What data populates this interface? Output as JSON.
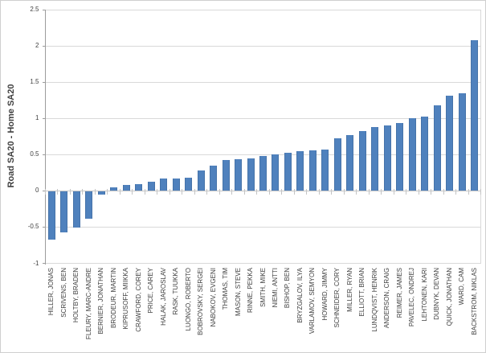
{
  "chart_data": {
    "type": "bar",
    "title": "",
    "xlabel": "",
    "ylabel": "Road SA20 - Home SA20",
    "ylim": [
      -1,
      2.5
    ],
    "ytick_step": 0.5,
    "ytick_labels": [
      "-1",
      "-0.5",
      "0",
      "0.5",
      "1",
      "1.5",
      "2",
      "2.5"
    ],
    "grid": true,
    "legend": false,
    "bar_color": "#4F81BD",
    "categories": [
      "HILLER, JONAS",
      "SCRIVENS, BEN",
      "HOLTBY, BRADEN",
      "FLEURY, MARC-ANDRE",
      "BERNIER, JONATHAN",
      "BRODEUR, MARTIN",
      "KIPRUSOFF, MIIKKA",
      "CRAWFORD, COREY",
      "PRICE, CAREY",
      "HALAK, JAROSLAV",
      "RASK, TUUKKA",
      "LUONGO, ROBERTO",
      "BOBROVSKY, SERGEI",
      "NABOKOV, EVGENI",
      "THOMAS, TIM",
      "MASON, STEVE",
      "RINNE, PEKKA",
      "SMITH, MIKE",
      "NIEMI, ANTTI",
      "BISHOP, BEN",
      "BRYZGALOV, ILYA",
      "VARLAMOV, SEMYON",
      "HOWARD, JIMMY",
      "SCHNEIDER, CORY",
      "MILLER, RYAN",
      "ELLIOTT, BRIAN",
      "LUNDQVIST, HENRIK",
      "ANDERSON, CRAIG",
      "REIMER, JAMES",
      "PAVELEC, ONDREJ",
      "LEHTONEN, KARI",
      "DUBNYK, DEVAN",
      "QUICK, JONATHAN",
      "WARD, CAM",
      "BACKSTROM, NIKLAS"
    ],
    "values": [
      -0.66,
      -0.56,
      -0.5,
      -0.37,
      -0.04,
      0.05,
      0.08,
      0.09,
      0.13,
      0.17,
      0.17,
      0.18,
      0.28,
      0.35,
      0.43,
      0.44,
      0.45,
      0.48,
      0.5,
      0.53,
      0.55,
      0.56,
      0.57,
      0.72,
      0.77,
      0.82,
      0.88,
      0.9,
      0.94,
      1.0,
      1.02,
      1.18,
      1.31,
      1.35,
      2.08
    ]
  }
}
